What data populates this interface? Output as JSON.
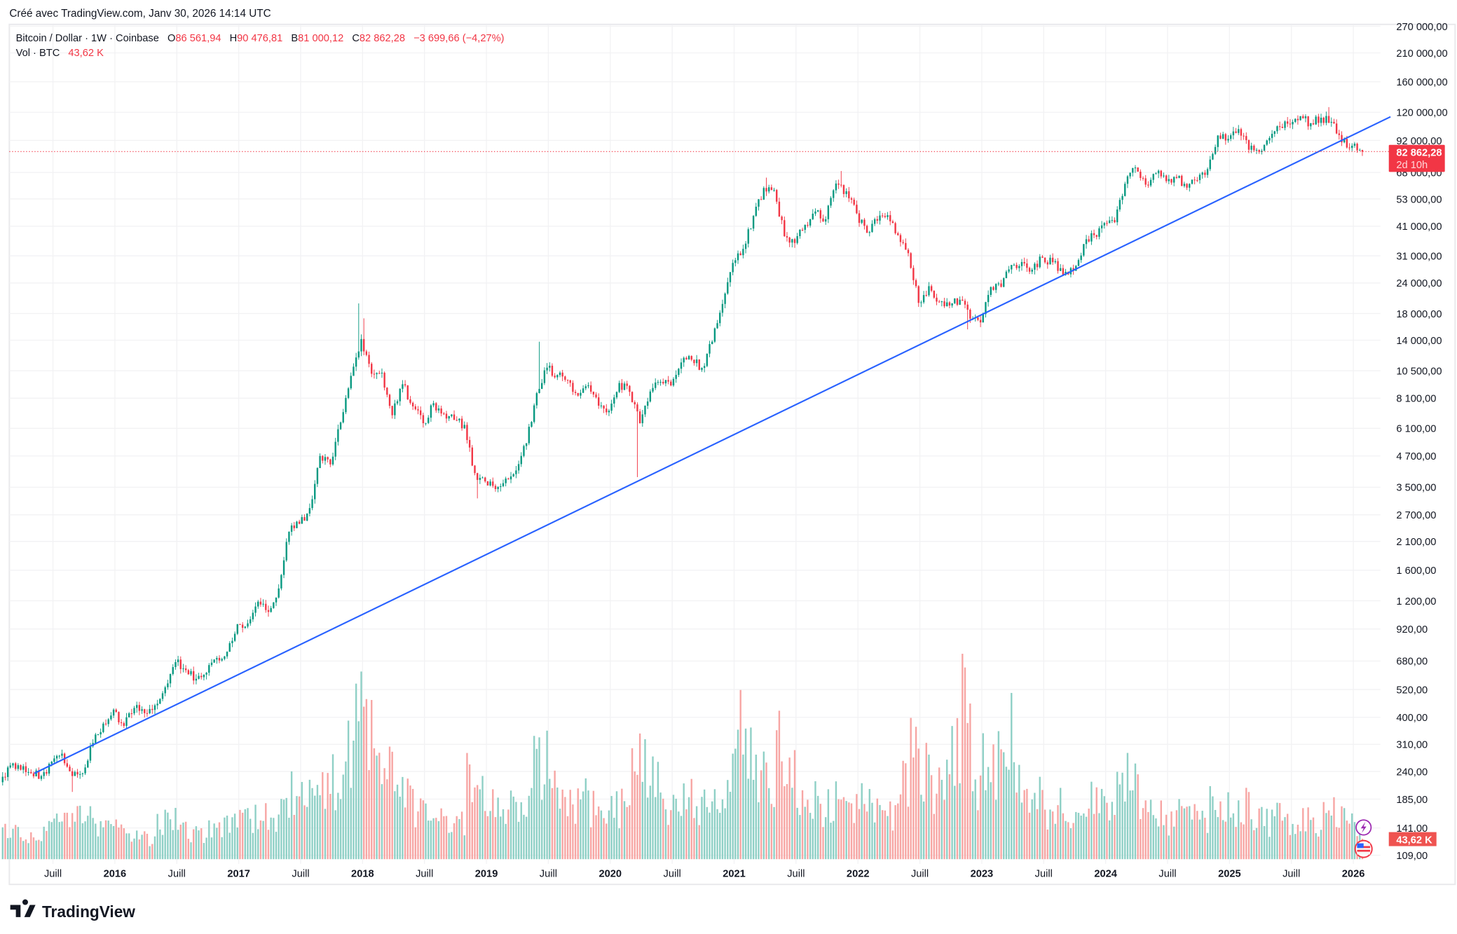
{
  "header": {
    "created": "Créé avec TradingView.com, Janv 30, 2026 14:14 UTC"
  },
  "legend": {
    "symbol": "Bitcoin / Dollar · 1W · Coinbase",
    "o_label": "O",
    "o": "86 561,94",
    "h_label": "H",
    "h": "90 476,81",
    "l_label": "B",
    "l": "81 000,12",
    "c_label": "C",
    "c": "82 862,28",
    "change": "−3 699,66 (−4,27%)",
    "vol_label": "Vol · BTC",
    "vol": "43,62 K"
  },
  "price_tag": {
    "price": "82 862,28",
    "countdown": "2d 10h"
  },
  "volume_tag": "43,62 K",
  "logo": "TradingView",
  "icons": [
    "lightning-icon",
    "us-flag-icon"
  ],
  "colors": {
    "up": "#089981",
    "down": "#f23645",
    "trendline": "#2962ff",
    "vol_up": "#8fd0c6",
    "vol_down": "#f7a6a4"
  },
  "chart_data": {
    "type": "candlestick",
    "title": "Bitcoin / Dollar · 1W · Coinbase",
    "scale": "log",
    "ylim": [
      109,
      270000
    ],
    "y_ticks": [
      "270 000,00",
      "210 000,00",
      "160 000,00",
      "120 000,00",
      "92 000,00",
      "68 000,00",
      "53 000,00",
      "41 000,00",
      "31 000,00",
      "24 000,00",
      "18 000,00",
      "14 000,00",
      "10 500,00",
      "8 100,00",
      "6 100,00",
      "4 700,00",
      "3 500,00",
      "2 700,00",
      "2 100,00",
      "1 600,00",
      "1 200,00",
      "920,00",
      "680,00",
      "520,00",
      "400,00",
      "310,00",
      "240,00",
      "185,00",
      "141,00",
      "109,00"
    ],
    "y_tick_values": [
      270000,
      210000,
      160000,
      120000,
      92000,
      68000,
      53000,
      41000,
      31000,
      24000,
      18000,
      14000,
      10500,
      8100,
      6100,
      4700,
      3500,
      2700,
      2100,
      1600,
      1200,
      920,
      680,
      520,
      400,
      310,
      240,
      185,
      141,
      109
    ],
    "x_ticks": [
      {
        "label": "Juill",
        "t": 2015.5,
        "bold": false
      },
      {
        "label": "2016",
        "t": 2016,
        "bold": true
      },
      {
        "label": "Juill",
        "t": 2016.5,
        "bold": false
      },
      {
        "label": "2017",
        "t": 2017,
        "bold": true
      },
      {
        "label": "Juill",
        "t": 2017.5,
        "bold": false
      },
      {
        "label": "2018",
        "t": 2018,
        "bold": true
      },
      {
        "label": "Juill",
        "t": 2018.5,
        "bold": false
      },
      {
        "label": "2019",
        "t": 2019,
        "bold": true
      },
      {
        "label": "Juill",
        "t": 2019.5,
        "bold": false
      },
      {
        "label": "2020",
        "t": 2020,
        "bold": true
      },
      {
        "label": "Juill",
        "t": 2020.5,
        "bold": false
      },
      {
        "label": "2021",
        "t": 2021,
        "bold": true
      },
      {
        "label": "Juill",
        "t": 2021.5,
        "bold": false
      },
      {
        "label": "2022",
        "t": 2022,
        "bold": true
      },
      {
        "label": "Juill",
        "t": 2022.5,
        "bold": false
      },
      {
        "label": "2023",
        "t": 2023,
        "bold": true
      },
      {
        "label": "Juill",
        "t": 2023.5,
        "bold": false
      },
      {
        "label": "2024",
        "t": 2024,
        "bold": true
      },
      {
        "label": "Juill",
        "t": 2024.5,
        "bold": false
      },
      {
        "label": "2025",
        "t": 2025,
        "bold": true
      },
      {
        "label": "Juill",
        "t": 2025.5,
        "bold": false
      },
      {
        "label": "2026",
        "t": 2026,
        "bold": true
      }
    ],
    "start_month": "2015-02",
    "start_open": 217,
    "monthly_close_approx": [
      254,
      244,
      236,
      230,
      263,
      284,
      230,
      236,
      314,
      377,
      430,
      369,
      437,
      416,
      448,
      531,
      673,
      624,
      575,
      609,
      700,
      742,
      963,
      970,
      1190,
      1080,
      1348,
      2300,
      2480,
      2875,
      4700,
      4340,
      6450,
      10000,
      14150,
      10200,
      10300,
      6900,
      9240,
      7500,
      6400,
      7730,
      7000,
      6600,
      6300,
      4000,
      3700,
      3440,
      3800,
      4100,
      5300,
      8500,
      10800,
      10080,
      9600,
      8300,
      9150,
      7550,
      7200,
      9350,
      8600,
      6400,
      8630,
      9450,
      9140,
      11350,
      11650,
      10780,
      13800,
      19700,
      29000,
      33100,
      45200,
      58800,
      57700,
      37300,
      35000,
      41500,
      47100,
      43800,
      61300,
      57000,
      46300,
      38500,
      43200,
      45500,
      37700,
      31800,
      19900,
      23300,
      20050,
      19400,
      20500,
      17150,
      16550,
      23100,
      23150,
      28450,
      29250,
      27200,
      30450,
      29200,
      25900,
      26950,
      34650,
      37700,
      42250,
      42550,
      61150,
      71300,
      60650,
      67500,
      62700,
      64600,
      58950,
      63300,
      70200,
      96400,
      93400,
      102400,
      84300,
      82500,
      94200,
      104600,
      107100,
      115700,
      108200,
      114000,
      109600,
      90400,
      87500,
      82862.28
    ],
    "highs_override": {
      "2017-12": 19800,
      "2021-04": 64800,
      "2021-11": 69000,
      "2025-10": 126000,
      "2019-06": 13800,
      "2018-01": 17200
    },
    "lows_override": {
      "2020-03": 3850,
      "2022-11": 15500,
      "2018-12": 3150,
      "2015-08": 198
    },
    "monthly_volume_k": [
      60,
      55,
      50,
      50,
      60,
      70,
      80,
      100,
      90,
      70,
      60,
      70,
      60,
      50,
      40,
      80,
      90,
      80,
      60,
      50,
      60,
      70,
      80,
      80,
      90,
      90,
      70,
      110,
      150,
      130,
      160,
      150,
      170,
      220,
      300,
      250,
      200,
      180,
      170,
      140,
      110,
      120,
      110,
      90,
      80,
      200,
      150,
      110,
      100,
      110,
      130,
      220,
      200,
      140,
      120,
      110,
      130,
      110,
      100,
      110,
      120,
      300,
      200,
      160,
      110,
      140,
      130,
      110,
      120,
      150,
      180,
      280,
      230,
      170,
      160,
      250,
      170,
      130,
      120,
      100,
      130,
      110,
      100,
      120,
      120,
      100,
      100,
      170,
      250,
      180,
      150,
      200,
      220,
      350,
      150,
      200,
      200,
      280,
      160,
      110,
      130,
      90,
      110,
      80,
      100,
      120,
      120,
      120,
      150,
      170,
      140,
      100,
      90,
      80,
      100,
      90,
      80,
      130,
      120,
      100,
      120,
      90,
      80,
      100,
      80,
      70,
      80,
      70,
      90,
      110,
      80,
      60
    ],
    "last_volume_k": 43.62,
    "trendline": [
      {
        "t": 2015.35,
        "p": 236
      },
      {
        "t": 2026.3,
        "p": 115000
      }
    ],
    "last_price": 82862.28
  }
}
